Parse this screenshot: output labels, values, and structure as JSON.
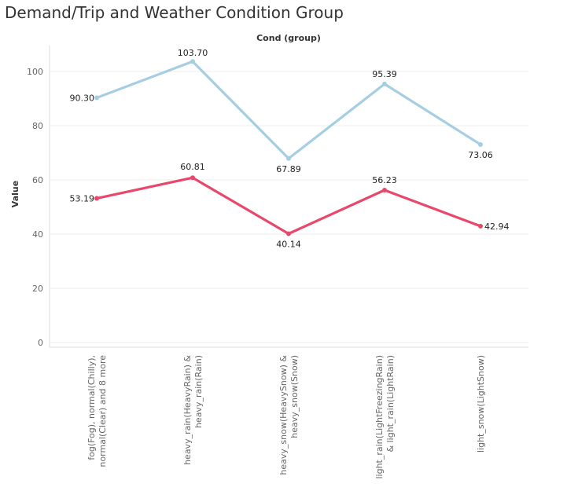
{
  "chart_data": {
    "type": "line",
    "title": "Demand/Trip and Weather Condition Group",
    "header_label": "Cond (group)",
    "ylabel": "Value",
    "xlabel": "",
    "ylim": [
      0,
      110
    ],
    "yticks": [
      0,
      20,
      40,
      60,
      80,
      100
    ],
    "grid": true,
    "categories": [
      [
        "fog(Fog), normal(Chilly),",
        "normal(Clear) and 8 more"
      ],
      [
        "heavy_rain(HeavyRain) &",
        "heavy_rain(Rain)"
      ],
      [
        "heavy_snow(HeavySnow) &",
        "heavy_snow(Snow)"
      ],
      [
        "light_rain(LightFreezingRain)",
        "& light_rain(LightRain)"
      ],
      [
        "light_snow(LightSnow)"
      ]
    ],
    "series": [
      {
        "color": "#a6cee3",
        "values": [
          90.3,
          103.7,
          67.89,
          95.39,
          73.06
        ],
        "labels": [
          "90.30",
          "103.70",
          "67.89",
          "95.39",
          "73.06"
        ]
      },
      {
        "color": "#e8486b",
        "values": [
          53.19,
          60.81,
          40.14,
          56.23,
          42.94
        ],
        "labels": [
          "53.19",
          "60.81",
          "40.14",
          "56.23",
          "42.94"
        ]
      }
    ]
  }
}
